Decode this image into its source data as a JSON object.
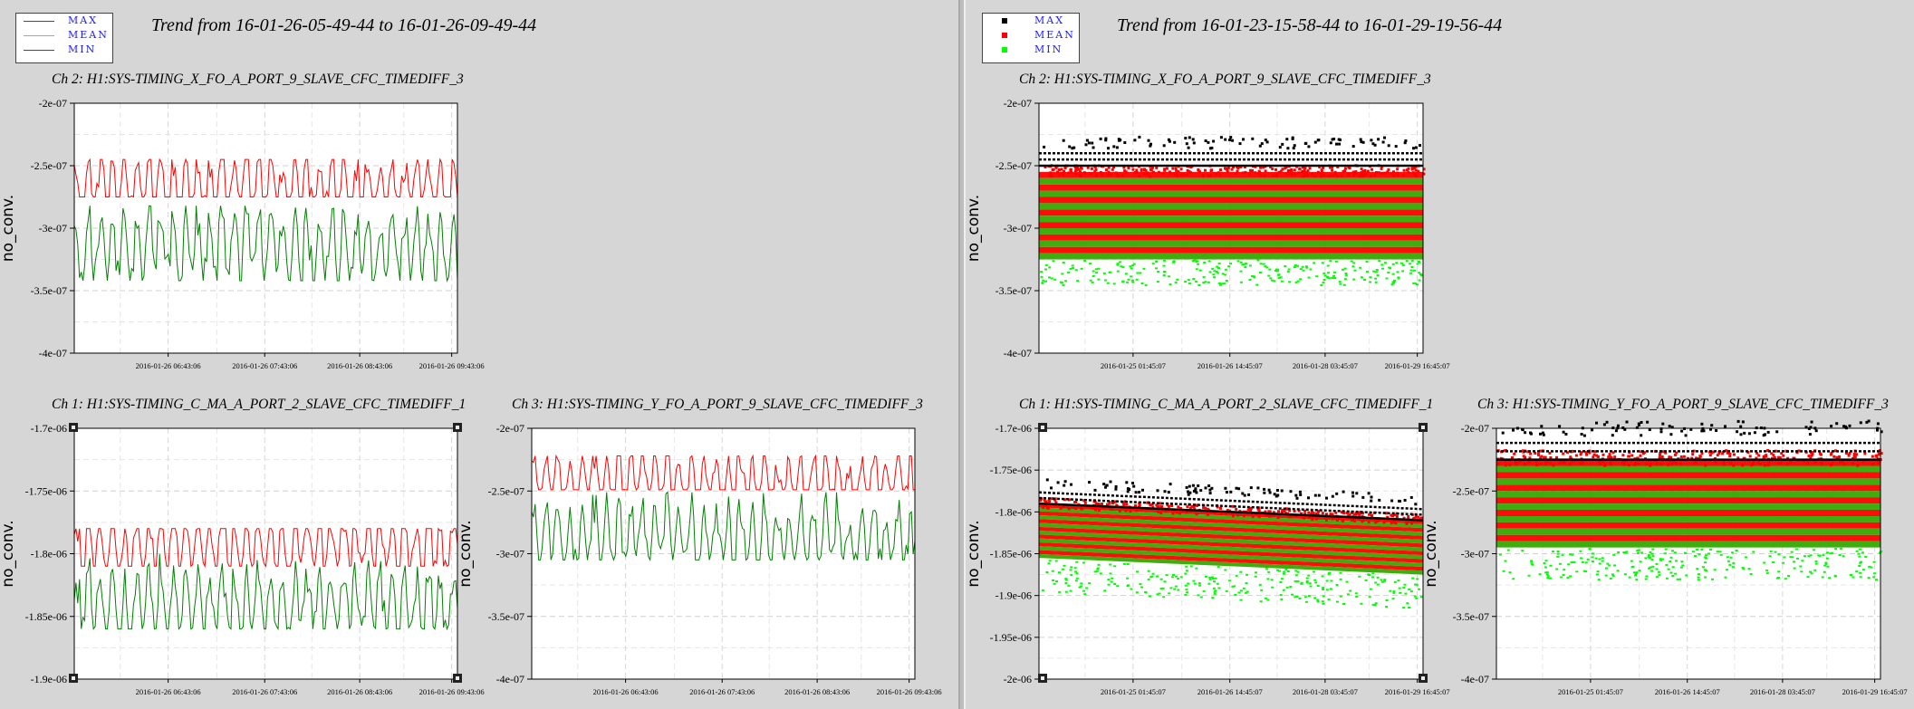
{
  "left": {
    "title": "Trend from 16-01-26-05-49-44 to 16-01-26-09-49-44",
    "legend": [
      {
        "label": "MAX",
        "color": "#ff0000",
        "style": "line"
      },
      {
        "label": "MEAN",
        "color": "#ff66ff",
        "style": "line"
      },
      {
        "label": "MIN",
        "color": "#008000",
        "style": "line"
      }
    ]
  },
  "right": {
    "title": "Trend from 16-01-23-15-58-44 to 16-01-29-19-56-44",
    "legend": [
      {
        "label": "MAX",
        "color": "#000000",
        "style": "dot"
      },
      {
        "label": "MEAN",
        "color": "#ff0000",
        "style": "dot"
      },
      {
        "label": "MIN",
        "color": "#00ff00",
        "style": "dot"
      }
    ]
  },
  "chart_data": [
    {
      "id": "left-ch2",
      "type": "line",
      "style": "line",
      "title": "Ch 2: H1:SYS-TIMING_X_FO_A_PORT_9_SLAVE_CFC_TIMEDIFF_3",
      "ylabel": "no_conv.",
      "ylim": [
        -4e-07,
        -2e-07
      ],
      "yticks": [
        "-2e-07",
        "-2.5e-07",
        "-3e-07",
        "-3.5e-07",
        "-4e-07"
      ],
      "xticks": [
        "2016-01-26 06:43:06",
        "2016-01-26 07:43:06",
        "2016-01-26 08:43:06",
        "2016-01-26 09:43:06"
      ],
      "band": {
        "center": -2.92e-07,
        "amp": 5e-08,
        "jitter": 2e-08,
        "min_max": -2.45e-07,
        "max_min": -3.42e-07
      },
      "series": [
        {
          "name": "MAX",
          "color": "#ff0000"
        },
        {
          "name": "MIN",
          "color": "#008000"
        }
      ]
    },
    {
      "id": "left-ch1",
      "type": "line",
      "style": "line",
      "title": "Ch 1: H1:SYS-TIMING_C_MA_A_PORT_2_SLAVE_CFC_TIMEDIFF_1",
      "ylabel": "no_conv.",
      "ylim": [
        -1.9e-06,
        -1.7e-06
      ],
      "yticks": [
        "-1.7e-06",
        "-1.75e-06",
        "-1.8e-06",
        "-1.85e-06",
        "-1.9e-06"
      ],
      "xticks": [
        "2016-01-26 06:43:06",
        "2016-01-26 07:43:06",
        "2016-01-26 08:43:06",
        "2016-01-26 09:43:06"
      ],
      "band": {
        "center": -1.816e-06,
        "amp": 5e-08,
        "jitter": 2e-08,
        "min_max": -1.78e-06,
        "max_min": -1.86e-06
      },
      "series": [
        {
          "name": "MAX",
          "color": "#ff0000"
        },
        {
          "name": "MIN",
          "color": "#008000"
        }
      ]
    },
    {
      "id": "left-ch3",
      "type": "line",
      "style": "line",
      "title": "Ch 3: H1:SYS-TIMING_Y_FO_A_PORT_9_SLAVE_CFC_TIMEDIFF_3",
      "ylabel": "no_conv.",
      "ylim": [
        -4e-07,
        -2e-07
      ],
      "yticks": [
        "-2e-07",
        "-2.5e-07",
        "-3e-07",
        "-3.5e-07",
        "-4e-07"
      ],
      "xticks": [
        "2016-01-26 06:43:06",
        "2016-01-26 07:43:06",
        "2016-01-26 08:43:06",
        "2016-01-26 09:43:06"
      ],
      "band": {
        "center": -2.65e-07,
        "amp": 4.5e-08,
        "jitter": 2e-08,
        "min_max": -2.22e-07,
        "max_min": -3.05e-07
      },
      "series": [
        {
          "name": "MAX",
          "color": "#ff0000"
        },
        {
          "name": "MIN",
          "color": "#008000"
        }
      ]
    },
    {
      "id": "right-ch2",
      "type": "scatter",
      "style": "dots",
      "title": "Ch 2: H1:SYS-TIMING_X_FO_A_PORT_9_SLAVE_CFC_TIMEDIFF_3",
      "ylabel": "no_conv.",
      "ylim": [
        -4e-07,
        -2e-07
      ],
      "yticks": [
        "-2e-07",
        "-2.5e-07",
        "-3e-07",
        "-3.5e-07",
        "-4e-07"
      ],
      "xticks": [
        "2016-01-25 01:45:07",
        "2016-01-26 14:45:07",
        "2016-01-28 03:45:07",
        "2016-01-29 16:45:07"
      ],
      "band": {
        "top": -2.35e-07,
        "max_lo": -2.5e-07,
        "mean_top": -2.55e-07,
        "mean_bottom": -3.25e-07,
        "min_bottom": -3.45e-07
      },
      "series": [
        {
          "name": "MAX",
          "color": "#000000"
        },
        {
          "name": "MEAN",
          "color": "#ff0000"
        },
        {
          "name": "MIN",
          "color": "#00ff00"
        }
      ]
    },
    {
      "id": "right-ch1",
      "type": "scatter",
      "style": "dots",
      "title": "Ch 1: H1:SYS-TIMING_C_MA_A_PORT_2_SLAVE_CFC_TIMEDIFF_1",
      "ylabel": "no_conv.",
      "ylim": [
        -2e-06,
        -1.7e-06
      ],
      "yticks": [
        "-1.7e-06",
        "-1.75e-06",
        "-1.8e-06",
        "-1.85e-06",
        "-1.9e-06",
        "-1.95e-06",
        "-2e-06"
      ],
      "xticks": [
        "2016-01-25 01:45:07",
        "2016-01-26 14:45:07",
        "2016-01-28 03:45:07",
        "2016-01-29 16:45:07"
      ],
      "band": {
        "top": -1.77e-06,
        "max_lo": -1.79e-06,
        "mean_top": -1.79e-06,
        "mean_bottom": -1.855e-06,
        "min_bottom": -1.895e-06,
        "slope": -2e-08
      },
      "series": [
        {
          "name": "MAX",
          "color": "#000000"
        },
        {
          "name": "MEAN",
          "color": "#ff0000"
        },
        {
          "name": "MIN",
          "color": "#00ff00"
        }
      ]
    },
    {
      "id": "right-ch3",
      "type": "scatter",
      "style": "dots",
      "title": "Ch 3: H1:SYS-TIMING_Y_FO_A_PORT_9_SLAVE_CFC_TIMEDIFF_3",
      "ylabel": "no_conv.",
      "ylim": [
        -4e-07,
        -2e-07
      ],
      "yticks": [
        "-2e-07",
        "-2.5e-07",
        "-3e-07",
        "-3.5e-07",
        "-4e-07"
      ],
      "xticks": [
        "2016-01-25 01:45:07",
        "2016-01-26 14:45:07",
        "2016-01-28 03:45:07",
        "2016-01-29 16:45:07"
      ],
      "band": {
        "top": -2.05e-07,
        "max_lo": -2.25e-07,
        "mean_top": -2.25e-07,
        "mean_bottom": -2.95e-07,
        "min_bottom": -3.2e-07
      },
      "series": [
        {
          "name": "MAX",
          "color": "#000000"
        },
        {
          "name": "MEAN",
          "color": "#ff0000"
        },
        {
          "name": "MIN",
          "color": "#00ff00"
        }
      ]
    }
  ]
}
